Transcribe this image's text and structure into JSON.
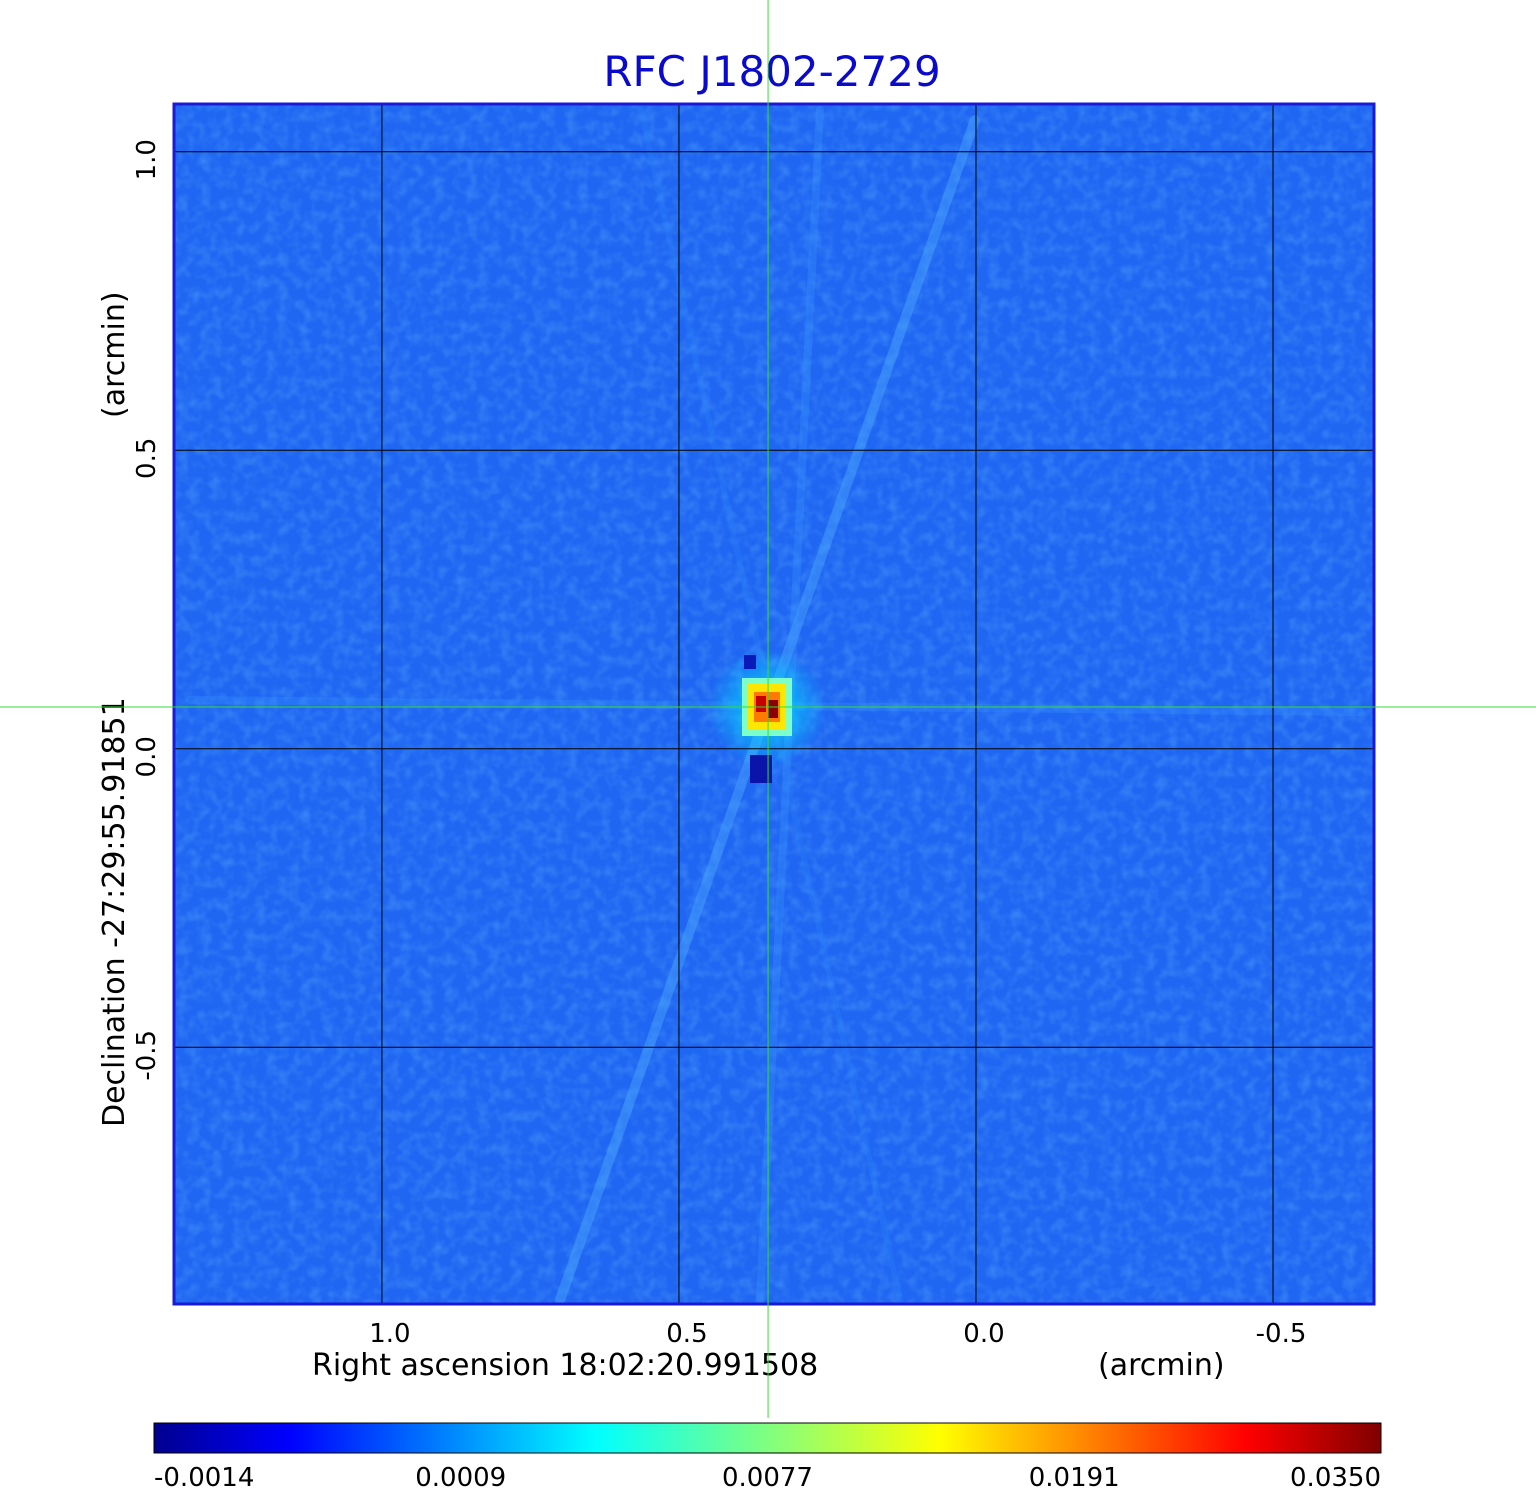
{
  "title": "RFC J1802-2729",
  "x_axis": {
    "label": "Right ascension  18:02:20.991508",
    "unit": "(arcmin)",
    "ticks": [
      "1.0",
      "0.5",
      "0.0",
      "-0.5"
    ],
    "tick_values": [
      1.0,
      0.5,
      0.0,
      -0.5
    ],
    "range": [
      1.35,
      -0.67
    ]
  },
  "y_axis": {
    "label": "Declination  -27:29:55.91851",
    "unit": "(arcmin)",
    "ticks": [
      "1.0",
      "0.5",
      "0.0",
      "-0.5"
    ],
    "tick_values": [
      1.0,
      0.5,
      0.0,
      -0.5
    ],
    "range": [
      -0.93,
      1.08
    ]
  },
  "image": {
    "colormap": "jet",
    "grid": true,
    "source_peak_arcmin": [
      0.35,
      0.07
    ],
    "crosshair_arcmin": [
      0.35,
      0.07
    ],
    "crosshair_color": "#33dd33",
    "frame_color": "#1a1ad6",
    "background_color": "#1f64f0"
  },
  "colorbar": {
    "labels": [
      "-0.0014",
      "0.0009",
      "0.0077",
      "0.0191",
      "0.0350"
    ],
    "values": [
      -0.0014,
      0.0009,
      0.0077,
      0.0191,
      0.035
    ]
  }
}
